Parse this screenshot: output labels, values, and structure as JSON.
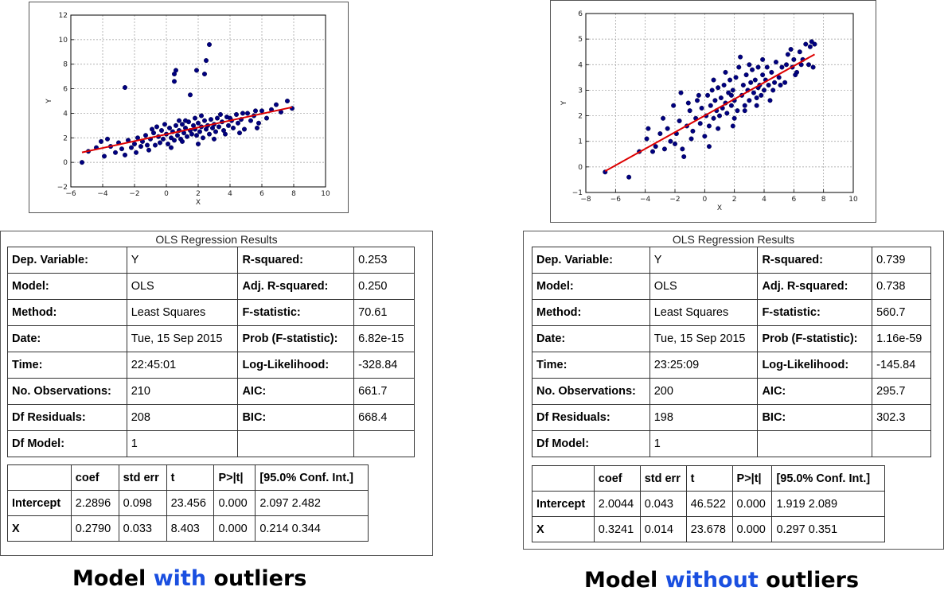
{
  "chart_data": [
    {
      "type": "scatter",
      "title": "",
      "xlabel": "X",
      "ylabel": "Y",
      "xlim": [
        -6,
        10
      ],
      "ylim": [
        -2,
        12
      ],
      "xticks": [
        -6,
        -4,
        -2,
        0,
        2,
        4,
        6,
        8,
        10
      ],
      "yticks": [
        -2,
        0,
        2,
        4,
        6,
        8,
        10,
        12
      ],
      "grid": true,
      "point_color": "#000080",
      "line_color": "#dd0000",
      "regression_line": {
        "intercept": 2.2896,
        "slope": 0.279,
        "x_range": [
          -5.3,
          7.9
        ]
      },
      "points": [
        [
          -5.3,
          0.0
        ],
        [
          -4.9,
          0.9
        ],
        [
          -4.1,
          1.7
        ],
        [
          -3.9,
          0.5
        ],
        [
          -3.5,
          1.3
        ],
        [
          -3.2,
          0.8
        ],
        [
          -3.0,
          1.6
        ],
        [
          -2.8,
          1.1
        ],
        [
          -2.6,
          0.6
        ],
        [
          -2.4,
          1.8
        ],
        [
          -2.2,
          1.2
        ],
        [
          -2.0,
          1.5
        ],
        [
          -1.8,
          2.0
        ],
        [
          -1.6,
          1.3
        ],
        [
          -1.5,
          1.7
        ],
        [
          -1.3,
          2.2
        ],
        [
          -1.1,
          1.0
        ],
        [
          -1.0,
          1.9
        ],
        [
          -0.8,
          2.4
        ],
        [
          -0.7,
          1.4
        ],
        [
          -0.5,
          2.1
        ],
        [
          -0.4,
          1.6
        ],
        [
          -0.3,
          2.6
        ],
        [
          -0.2,
          1.9
        ],
        [
          0.0,
          2.3
        ],
        [
          0.1,
          1.5
        ],
        [
          0.2,
          2.8
        ],
        [
          0.3,
          2.0
        ],
        [
          0.4,
          2.5
        ],
        [
          0.5,
          1.8
        ],
        [
          0.6,
          3.0
        ],
        [
          0.7,
          2.2
        ],
        [
          0.8,
          2.6
        ],
        [
          0.9,
          1.9
        ],
        [
          1.0,
          3.1
        ],
        [
          1.1,
          2.4
        ],
        [
          1.2,
          2.8
        ],
        [
          1.3,
          2.1
        ],
        [
          1.4,
          3.3
        ],
        [
          1.5,
          2.6
        ],
        [
          1.6,
          2.3
        ],
        [
          1.7,
          3.0
        ],
        [
          1.8,
          2.7
        ],
        [
          1.9,
          2.2
        ],
        [
          2.0,
          3.2
        ],
        [
          2.1,
          2.5
        ],
        [
          2.2,
          2.9
        ],
        [
          2.3,
          2.0
        ],
        [
          2.4,
          3.4
        ],
        [
          2.5,
          2.7
        ],
        [
          2.6,
          3.0
        ],
        [
          2.7,
          2.3
        ],
        [
          2.8,
          3.5
        ],
        [
          2.9,
          2.8
        ],
        [
          3.0,
          3.1
        ],
        [
          3.1,
          2.5
        ],
        [
          3.2,
          3.6
        ],
        [
          3.3,
          2.9
        ],
        [
          3.5,
          3.3
        ],
        [
          3.6,
          2.6
        ],
        [
          3.8,
          3.7
        ],
        [
          3.9,
          3.0
        ],
        [
          4.1,
          3.4
        ],
        [
          4.2,
          2.8
        ],
        [
          4.4,
          3.9
        ],
        [
          4.5,
          3.2
        ],
        [
          4.7,
          3.5
        ],
        [
          4.9,
          2.7
        ],
        [
          5.1,
          4.0
        ],
        [
          5.3,
          3.4
        ],
        [
          5.5,
          3.8
        ],
        [
          5.8,
          3.2
        ],
        [
          6.0,
          4.2
        ],
        [
          6.3,
          3.6
        ],
        [
          6.6,
          4.3
        ],
        [
          6.9,
          4.7
        ],
        [
          7.2,
          4.1
        ],
        [
          7.6,
          5.0
        ],
        [
          7.9,
          4.4
        ],
        [
          -2.6,
          6.1
        ],
        [
          0.5,
          6.6
        ],
        [
          0.5,
          7.2
        ],
        [
          0.6,
          7.5
        ],
        [
          1.5,
          5.5
        ],
        [
          1.9,
          7.5
        ],
        [
          2.4,
          7.2
        ],
        [
          2.5,
          8.3
        ],
        [
          2.7,
          9.6
        ],
        [
          -0.9,
          2.7
        ],
        [
          -0.1,
          3.1
        ],
        [
          1.2,
          3.4
        ],
        [
          1.8,
          3.6
        ],
        [
          2.2,
          3.8
        ],
        [
          3.4,
          3.9
        ],
        [
          4.0,
          3.6
        ],
        [
          4.8,
          4.0
        ],
        [
          5.6,
          4.2
        ],
        [
          -4.4,
          1.2
        ],
        [
          -3.7,
          1.9
        ],
        [
          -1.9,
          0.8
        ],
        [
          -1.2,
          1.4
        ],
        [
          0.3,
          1.2
        ],
        [
          1.0,
          1.7
        ],
        [
          2.0,
          1.5
        ],
        [
          3.0,
          1.9
        ],
        [
          3.7,
          2.3
        ],
        [
          4.6,
          2.4
        ],
        [
          5.7,
          2.8
        ],
        [
          -0.6,
          2.9
        ],
        [
          0.8,
          3.4
        ]
      ]
    },
    {
      "type": "scatter",
      "title": "",
      "xlabel": "X",
      "ylabel": "Y",
      "xlim": [
        -8,
        10
      ],
      "ylim": [
        -1,
        6
      ],
      "xticks": [
        -8,
        -6,
        -4,
        -2,
        0,
        2,
        4,
        6,
        8,
        10
      ],
      "yticks": [
        -1,
        0,
        1,
        2,
        3,
        4,
        5,
        6
      ],
      "grid": true,
      "point_color": "#000080",
      "line_color": "#dd0000",
      "regression_line": {
        "intercept": 2.0044,
        "slope": 0.3241,
        "x_range": [
          -6.7,
          7.4
        ]
      },
      "points": [
        [
          -6.7,
          -0.2
        ],
        [
          -5.1,
          -0.4
        ],
        [
          -4.4,
          0.6
        ],
        [
          -3.9,
          1.1
        ],
        [
          -3.8,
          1.5
        ],
        [
          -3.3,
          0.8
        ],
        [
          -3.0,
          1.3
        ],
        [
          -2.7,
          0.7
        ],
        [
          -2.5,
          1.5
        ],
        [
          -2.3,
          1.0
        ],
        [
          -2.1,
          2.4
        ],
        [
          -1.9,
          1.3
        ],
        [
          -1.7,
          1.8
        ],
        [
          -1.5,
          0.7
        ],
        [
          -1.4,
          0.4
        ],
        [
          -1.2,
          1.6
        ],
        [
          -1.0,
          2.2
        ],
        [
          -0.8,
          1.4
        ],
        [
          -0.6,
          1.9
        ],
        [
          -0.5,
          2.6
        ],
        [
          -0.3,
          1.7
        ],
        [
          -0.2,
          2.3
        ],
        [
          0.0,
          1.2
        ],
        [
          0.1,
          2.0
        ],
        [
          0.2,
          2.8
        ],
        [
          0.3,
          1.6
        ],
        [
          0.4,
          2.4
        ],
        [
          0.5,
          3.0
        ],
        [
          0.6,
          1.9
        ],
        [
          0.7,
          2.6
        ],
        [
          0.8,
          2.2
        ],
        [
          0.9,
          3.1
        ],
        [
          1.0,
          2.0
        ],
        [
          1.1,
          2.7
        ],
        [
          1.2,
          2.3
        ],
        [
          1.3,
          3.2
        ],
        [
          1.4,
          2.5
        ],
        [
          1.5,
          2.1
        ],
        [
          1.6,
          2.9
        ],
        [
          1.7,
          3.4
        ],
        [
          1.8,
          2.4
        ],
        [
          1.9,
          3.0
        ],
        [
          2.0,
          2.6
        ],
        [
          2.1,
          3.5
        ],
        [
          2.2,
          2.2
        ],
        [
          2.3,
          3.9
        ],
        [
          2.4,
          4.3
        ],
        [
          2.5,
          2.8
        ],
        [
          2.6,
          3.2
        ],
        [
          2.7,
          2.4
        ],
        [
          2.8,
          3.6
        ],
        [
          2.9,
          3.0
        ],
        [
          3.0,
          2.6
        ],
        [
          3.1,
          3.3
        ],
        [
          3.2,
          3.8
        ],
        [
          3.3,
          2.9
        ],
        [
          3.4,
          3.4
        ],
        [
          3.5,
          2.7
        ],
        [
          3.6,
          3.9
        ],
        [
          3.7,
          3.2
        ],
        [
          3.8,
          2.8
        ],
        [
          3.9,
          3.6
        ],
        [
          4.0,
          3.0
        ],
        [
          4.1,
          3.4
        ],
        [
          4.2,
          3.9
        ],
        [
          4.3,
          3.2
        ],
        [
          4.5,
          3.7
        ],
        [
          4.6,
          3.0
        ],
        [
          4.8,
          4.1
        ],
        [
          5.0,
          3.5
        ],
        [
          5.2,
          3.9
        ],
        [
          5.4,
          3.3
        ],
        [
          5.6,
          4.4
        ],
        [
          5.8,
          4.6
        ],
        [
          5.9,
          3.9
        ],
        [
          6.0,
          4.2
        ],
        [
          6.2,
          3.7
        ],
        [
          6.4,
          4.5
        ],
        [
          6.6,
          4.2
        ],
        [
          6.8,
          4.8
        ],
        [
          7.0,
          4.0
        ],
        [
          7.1,
          4.7
        ],
        [
          7.2,
          4.9
        ],
        [
          7.4,
          4.8
        ],
        [
          7.3,
          3.9
        ],
        [
          -1.6,
          2.9
        ],
        [
          -0.9,
          1.1
        ],
        [
          -0.4,
          2.8
        ],
        [
          0.9,
          1.5
        ],
        [
          1.9,
          1.6
        ],
        [
          2.7,
          2.2
        ],
        [
          3.5,
          2.4
        ],
        [
          4.4,
          2.6
        ],
        [
          5.1,
          3.2
        ],
        [
          6.1,
          3.6
        ],
        [
          -2.8,
          1.9
        ],
        [
          -1.1,
          2.5
        ],
        [
          0.6,
          3.4
        ],
        [
          1.4,
          3.7
        ],
        [
          2.0,
          1.9
        ],
        [
          3.0,
          4.0
        ],
        [
          3.9,
          4.2
        ],
        [
          4.7,
          3.3
        ],
        [
          5.5,
          4.0
        ],
        [
          6.5,
          4.0
        ],
        [
          -3.5,
          0.6
        ],
        [
          -2.0,
          0.9
        ],
        [
          0.3,
          0.8
        ],
        [
          1.8,
          2.8
        ],
        [
          3.6,
          3.1
        ]
      ]
    }
  ],
  "left_results": {
    "caption": "OLS Regression Results",
    "rows": [
      [
        "Dep. Variable:",
        "Y",
        "R-squared:",
        "0.253"
      ],
      [
        "Model:",
        "OLS",
        "Adj. R-squared:",
        "0.250"
      ],
      [
        "Method:",
        "Least Squares",
        "F-statistic:",
        "70.61"
      ],
      [
        "Date:",
        "Tue, 15 Sep 2015",
        "Prob (F-statistic):",
        "6.82e-15"
      ],
      [
        "Time:",
        "22:45:01",
        "Log-Likelihood:",
        "-328.84"
      ],
      [
        "No. Observations:",
        "210",
        "AIC:",
        "661.7"
      ],
      [
        "Df Residuals:",
        "208",
        "BIC:",
        "668.4"
      ],
      [
        "Df Model:",
        "1",
        "",
        ""
      ]
    ],
    "coef_headers": [
      "",
      "coef",
      "std err",
      "t",
      "P>|t|",
      "[95.0% Conf. Int.]"
    ],
    "coef_rows": [
      [
        "Intercept",
        "2.2896",
        "0.098",
        "23.456",
        "0.000",
        "2.097 2.482"
      ],
      [
        "X",
        "0.2790",
        "0.033",
        "8.403",
        "0.000",
        "0.214 0.344"
      ]
    ]
  },
  "right_results": {
    "caption": "OLS Regression Results",
    "rows": [
      [
        "Dep. Variable:",
        "Y",
        "R-squared:",
        "0.739"
      ],
      [
        "Model:",
        "OLS",
        "Adj. R-squared:",
        "0.738"
      ],
      [
        "Method:",
        "Least Squares",
        "F-statistic:",
        "560.7"
      ],
      [
        "Date:",
        "Tue, 15 Sep 2015",
        "Prob (F-statistic):",
        "1.16e-59"
      ],
      [
        "Time:",
        "23:25:09",
        "Log-Likelihood:",
        "-145.84"
      ],
      [
        "No. Observations:",
        "200",
        "AIC:",
        "295.7"
      ],
      [
        "Df Residuals:",
        "198",
        "BIC:",
        "302.3"
      ],
      [
        "Df Model:",
        "1",
        "",
        ""
      ]
    ],
    "coef_headers": [
      "",
      "coef",
      "std err",
      "t",
      "P>|t|",
      "[95.0% Conf. Int.]"
    ],
    "coef_rows": [
      [
        "Intercept",
        "2.0044",
        "0.043",
        "46.522",
        "0.000",
        "1.919 2.089"
      ],
      [
        "X",
        "0.3241",
        "0.014",
        "23.678",
        "0.000",
        "0.297 0.351"
      ]
    ]
  },
  "titles": {
    "left": {
      "prefix": "Model ",
      "accent": "with",
      "suffix": " outliers"
    },
    "right": {
      "prefix": "Model ",
      "accent": "without",
      "suffix": " outliers"
    },
    "accent_color": "#1a4fe0"
  }
}
